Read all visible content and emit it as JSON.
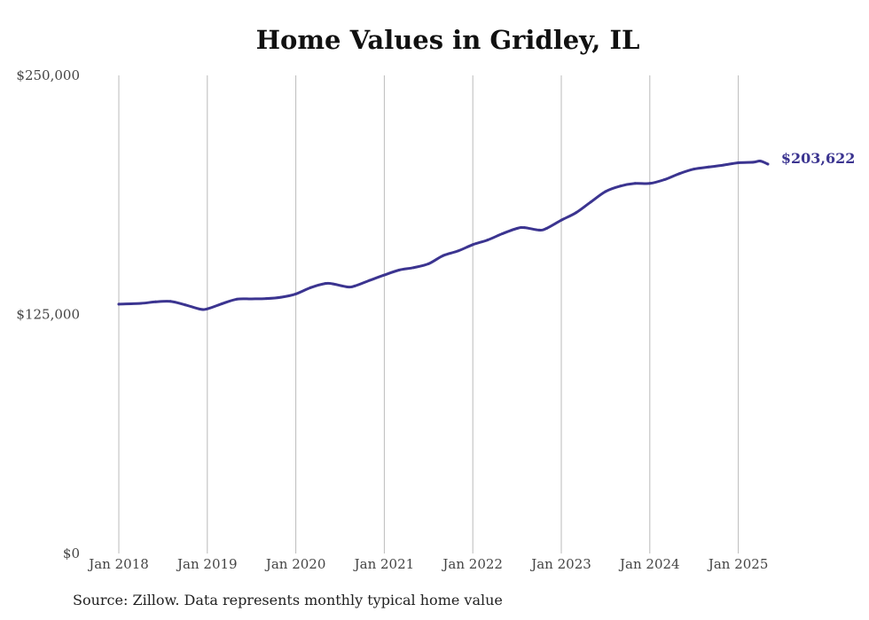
{
  "title": "Home Values in Gridley, IL",
  "source": "Source: Zillow. Data represents monthly typical home value",
  "colors": {
    "line": "#3b3490",
    "grid": "#bbbbbb",
    "text": "#444444"
  },
  "chart_data": {
    "type": "line",
    "title": "Home Values in Gridley, IL",
    "xlabel": "",
    "ylabel": "",
    "ylim": [
      0,
      250000
    ],
    "y_ticks": [
      {
        "value": 0,
        "label": "$0"
      },
      {
        "value": 125000,
        "label": "$125,000"
      },
      {
        "value": 250000,
        "label": "$250,000"
      }
    ],
    "x_range": [
      2018.0,
      2025.5
    ],
    "x_ticks": [
      {
        "value": 2018,
        "label": "Jan 2018"
      },
      {
        "value": 2019,
        "label": "Jan 2019"
      },
      {
        "value": 2020,
        "label": "Jan 2020"
      },
      {
        "value": 2021,
        "label": "Jan 2021"
      },
      {
        "value": 2022,
        "label": "Jan 2022"
      },
      {
        "value": 2023,
        "label": "Jan 2023"
      },
      {
        "value": 2024,
        "label": "Jan 2024"
      },
      {
        "value": 2025,
        "label": "Jan 2025"
      }
    ],
    "grid": "vertical",
    "end_label": "$203,622",
    "series": [
      {
        "x": [
          "2018-01",
          "2018-04",
          "2018-06",
          "2018-08",
          "2018-10",
          "2018-12",
          "2019-01",
          "2019-03",
          "2019-05",
          "2019-07",
          "2019-09",
          "2019-11",
          "2020-01",
          "2020-03",
          "2020-05",
          "2020-06",
          "2020-08",
          "2020-09",
          "2020-11",
          "2021-01",
          "2021-03",
          "2021-05",
          "2021-07",
          "2021-09",
          "2021-11",
          "2022-01",
          "2022-03",
          "2022-05",
          "2022-07",
          "2022-08",
          "2022-10",
          "2022-11",
          "2023-01",
          "2023-03",
          "2023-05",
          "2023-07",
          "2023-09",
          "2023-11",
          "2024-01",
          "2024-03",
          "2024-05",
          "2024-07",
          "2024-09",
          "2024-11",
          "2025-01",
          "2025-03",
          "2025-04",
          "2025-05"
        ],
        "values": [
          130400,
          130800,
          131600,
          131800,
          130000,
          127800,
          127900,
          130600,
          133000,
          133100,
          133300,
          134000,
          135700,
          139000,
          141200,
          141000,
          139400,
          139900,
          142800,
          145600,
          148200,
          149500,
          151500,
          155800,
          158200,
          161500,
          163900,
          167200,
          170000,
          170400,
          169100,
          170000,
          174300,
          178200,
          183800,
          189300,
          192100,
          193500,
          193500,
          195500,
          198600,
          201000,
          202100,
          203100,
          204300,
          204600,
          205200,
          203622
        ]
      }
    ]
  }
}
